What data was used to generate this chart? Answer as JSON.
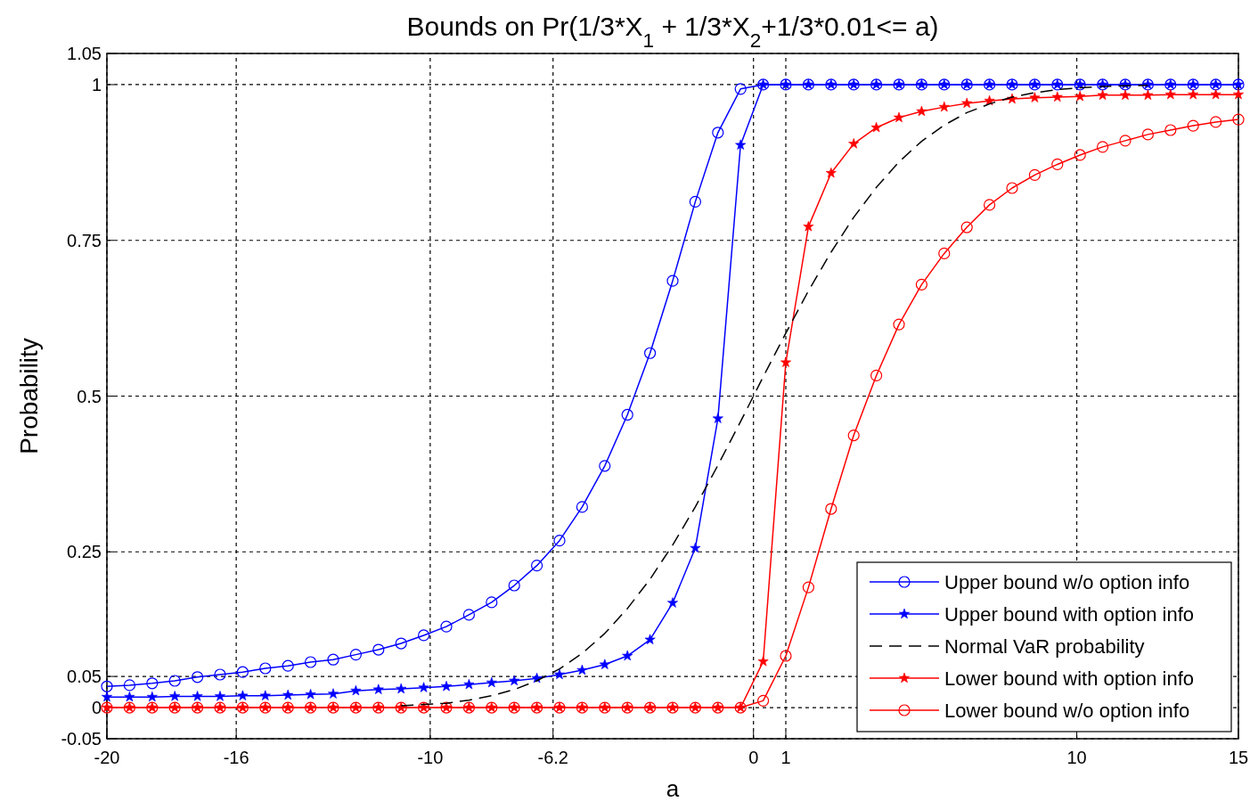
{
  "chart_data": {
    "type": "line",
    "title": "Bounds on Pr(1/3*X$_{1}$ + 1/3*X$_{2}$+1/3*0.01<= a)",
    "xlabel": "a",
    "ylabel": "Probability",
    "x": [
      -20,
      -19.3,
      -18.6,
      -17.9,
      -17.2,
      -16.5,
      -15.8,
      -15.1,
      -14.4,
      -13.7,
      -13,
      -12.3,
      -11.6,
      -10.9,
      -10.2,
      -9.5,
      -8.8,
      -8.1,
      -7.4,
      -6.7,
      -6,
      -5.3,
      -4.6,
      -3.9,
      -3.2,
      -2.5,
      -1.8,
      -1.1,
      -0.4,
      0.3,
      1,
      1.7,
      2.4,
      3.1,
      3.8,
      4.5,
      5.2,
      5.9,
      6.6,
      7.3,
      8,
      8.7,
      9.4,
      10.1,
      10.8,
      11.5,
      12.2,
      12.9,
      13.6,
      14.3,
      15
    ],
    "xlim": [
      -20,
      15
    ],
    "xticks": [
      -20,
      -16,
      -10,
      -6.2,
      0,
      1,
      10,
      15
    ],
    "ylim": [
      -0.05,
      1.05
    ],
    "yticks": [
      -0.05,
      0,
      0.05,
      0.25,
      0.5,
      0.75,
      1,
      1.05
    ],
    "grid": true,
    "legend": "bottom right",
    "series": [
      {
        "name": "Upper bound w/o option info",
        "color": "#0000ff",
        "marker": "circle",
        "line_style": "solid",
        "values": [
          0.034,
          0.036,
          0.039,
          0.043,
          0.049,
          0.053,
          0.057,
          0.063,
          0.067,
          0.073,
          0.077,
          0.085,
          0.093,
          0.103,
          0.116,
          0.13,
          0.149,
          0.169,
          0.196,
          0.228,
          0.268,
          0.322,
          0.388,
          0.47,
          0.569,
          0.685,
          0.812,
          0.923,
          0.993,
          1,
          1,
          1,
          1,
          1,
          1,
          1,
          1,
          1,
          1,
          1,
          1,
          1,
          1,
          1,
          1,
          1,
          1,
          1,
          1,
          1,
          1
        ]
      },
      {
        "name": "Upper bound with option info",
        "color": "#0000ff",
        "marker": "star",
        "line_style": "solid",
        "values": [
          0.017,
          0.017,
          0.017,
          0.018,
          0.018,
          0.018,
          0.019,
          0.019,
          0.02,
          0.021,
          0.022,
          0.027,
          0.029,
          0.03,
          0.032,
          0.034,
          0.037,
          0.04,
          0.043,
          0.047,
          0.053,
          0.06,
          0.069,
          0.083,
          0.109,
          0.168,
          0.256,
          0.464,
          0.903,
          1,
          1,
          1,
          1,
          1,
          1,
          1,
          1,
          1,
          1,
          1,
          1,
          1,
          1,
          1,
          1,
          1,
          1,
          1,
          1,
          1,
          1
        ]
      },
      {
        "name": "Normal VaR probability",
        "color": "#000000",
        "marker": "none",
        "line_style": "dashed",
        "values": [
          null,
          null,
          null,
          null,
          null,
          null,
          null,
          null,
          null,
          null,
          null,
          null,
          null,
          0.003,
          0.005,
          0.007,
          0.012,
          0.019,
          0.029,
          0.043,
          0.062,
          0.087,
          0.119,
          0.159,
          0.206,
          0.261,
          0.322,
          0.389,
          0.459,
          0.531,
          0.601,
          0.669,
          0.731,
          0.787,
          0.835,
          0.876,
          0.909,
          0.935,
          0.955,
          0.969,
          0.98,
          0.987,
          0.992,
          0.995,
          0.997,
          0.998,
          0.999,
          null,
          null,
          null,
          null
        ]
      },
      {
        "name": "Lower bound with option info",
        "color": "#ff0000",
        "marker": "star",
        "line_style": "solid",
        "values": [
          0,
          0,
          0,
          0,
          0,
          0,
          0,
          0,
          0,
          0,
          0,
          0,
          0,
          0,
          0,
          0,
          0,
          0,
          0,
          0,
          0,
          0,
          0,
          0,
          0,
          0,
          0,
          0,
          0,
          0.074,
          0.554,
          0.772,
          0.858,
          0.905,
          0.931,
          0.947,
          0.957,
          0.964,
          0.97,
          0.974,
          0.977,
          0.979,
          0.98,
          0.981,
          0.983,
          0.983,
          0.983,
          0.984,
          0.984,
          0.984,
          0.984
        ]
      },
      {
        "name": "Lower bound w/o option info",
        "color": "#ff0000",
        "marker": "circle",
        "line_style": "solid",
        "values": [
          0,
          0,
          0,
          0,
          0,
          0,
          0,
          0,
          0,
          0,
          0,
          0,
          0,
          0,
          0,
          0,
          0,
          0,
          0,
          0,
          0,
          0,
          0,
          0,
          0,
          0,
          0,
          0,
          0,
          0.011,
          0.083,
          0.193,
          0.319,
          0.437,
          0.533,
          0.615,
          0.679,
          0.729,
          0.771,
          0.807,
          0.834,
          0.855,
          0.872,
          0.887,
          0.9,
          0.91,
          0.92,
          0.927,
          0.934,
          0.94,
          0.944
        ]
      }
    ]
  }
}
